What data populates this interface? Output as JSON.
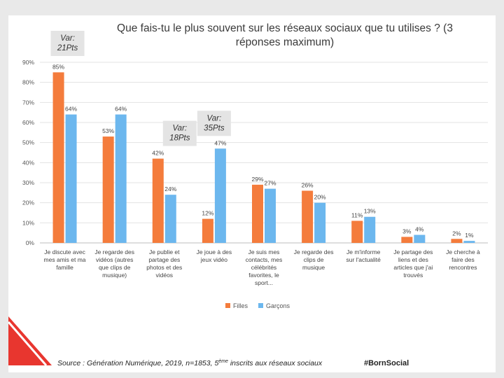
{
  "chart_data": {
    "type": "bar",
    "title_lines": [
      "Que fais-tu le plus souvent sur les réseaux sociaux que tu utilises ? (3",
      "réponses maximum)"
    ],
    "ylim": [
      0,
      90
    ],
    "yticks": [
      "0%",
      "10%",
      "20%",
      "30%",
      "40%",
      "50%",
      "60%",
      "70%",
      "80%",
      "90%"
    ],
    "categories": [
      [
        "Je discute avec",
        "mes amis et ma",
        "famille"
      ],
      [
        "Je regarde des",
        "vidéos (autres",
        "que clips de",
        "musique)"
      ],
      [
        "Je publie et",
        "partage des",
        "photos et des",
        "vidéos"
      ],
      [
        "Je joue à des",
        "jeux vidéo"
      ],
      [
        "Je suis mes",
        "contacts, mes",
        "célébrités",
        "favorites, le",
        "sport..."
      ],
      [
        "Je regarde des",
        "clips de",
        "musique"
      ],
      [
        "Je m'informe",
        "sur l'actualité"
      ],
      [
        "Je partage des",
        "liens et des",
        "articles que j'ai",
        "trouvés"
      ],
      [
        "Je cherche à",
        "faire des",
        "rencontres"
      ]
    ],
    "series": [
      {
        "name": "Filles",
        "color": "#f47c3c",
        "values": [
          85,
          53,
          42,
          12,
          29,
          26,
          11,
          3,
          2
        ],
        "labels": [
          "85%",
          "53%",
          "42%",
          "12%",
          "29%",
          "26%",
          "11%",
          "3%",
          "2%"
        ]
      },
      {
        "name": "Garçons",
        "color": "#6cb7ee",
        "values": [
          64,
          64,
          24,
          47,
          27,
          20,
          13,
          4,
          1
        ],
        "labels": [
          "64%",
          "64%",
          "24%",
          "47%",
          "27%",
          "20%",
          "13%",
          "4%",
          "1%"
        ]
      }
    ],
    "annotations": [
      {
        "lines": [
          "Var:",
          "21Pts"
        ],
        "category_index": 0
      },
      {
        "lines": [
          "Var:",
          "18Pts"
        ],
        "category_index": 2
      },
      {
        "lines": [
          "Var:",
          "35Pts"
        ],
        "category_index": 3
      }
    ],
    "legend_position": "bottom"
  },
  "footer": {
    "source_prefix": "Source : Génération Numérique, 2019, n=1853, 5",
    "source_sup": "ème",
    "source_suffix": " inscrits aux réseaux sociaux",
    "hashtag": "#BornSocial"
  },
  "colors": {
    "accent_red": "#e8362f"
  }
}
